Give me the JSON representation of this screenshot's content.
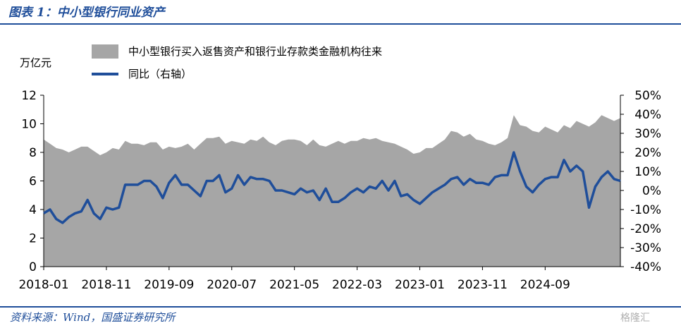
{
  "header": {
    "title": "图表 1：中小型银行同业资产"
  },
  "footer": {
    "source": "资料来源：Wind，国盛证券研究所",
    "watermark": "格隆汇"
  },
  "colors": {
    "area": "#a6a6a6",
    "line": "#1f4e9a",
    "accent": "#1f4e9a"
  },
  "chart_data": {
    "type": "area+line",
    "unit_left": "万亿元",
    "legend": [
      {
        "name": "中小型银行买入返售资产和银行业存款类金融机构往来",
        "type": "area",
        "axis": "left"
      },
      {
        "name": "同比（右轴）",
        "type": "line",
        "axis": "right"
      }
    ],
    "x_tick_labels": [
      "2018-01",
      "2018-11",
      "2019-09",
      "2020-07",
      "2021-05",
      "2022-03",
      "2023-01",
      "2023-11",
      "2024-09"
    ],
    "y_left": {
      "range": [
        0,
        12
      ],
      "ticks": [
        "0",
        "2",
        "4",
        "6",
        "8",
        "10",
        "12"
      ]
    },
    "y_right": {
      "range": [
        -40,
        50
      ],
      "ticks": [
        "-40%",
        "-30%",
        "-20%",
        "-10%",
        "0%",
        "10%",
        "20%",
        "30%",
        "40%",
        "50%"
      ]
    },
    "months_start": "2018-01",
    "series": [
      {
        "name": "中小型银行买入返售资产和银行业存款类金融机构往来",
        "axis": "left",
        "values": [
          8.9,
          8.6,
          8.3,
          8.2,
          8.0,
          8.2,
          8.4,
          8.4,
          8.1,
          7.8,
          8.0,
          8.3,
          8.2,
          8.8,
          8.6,
          8.6,
          8.5,
          8.7,
          8.7,
          8.2,
          8.4,
          8.3,
          8.4,
          8.6,
          8.2,
          8.6,
          9.0,
          9.0,
          9.1,
          8.6,
          8.8,
          8.7,
          8.6,
          8.9,
          8.8,
          9.1,
          8.7,
          8.5,
          8.8,
          8.9,
          8.9,
          8.8,
          8.5,
          8.9,
          8.5,
          8.4,
          8.6,
          8.8,
          8.6,
          8.8,
          8.8,
          9.0,
          8.9,
          9.0,
          8.8,
          8.7,
          8.6,
          8.4,
          8.2,
          7.9,
          8.0,
          8.3,
          8.3,
          8.6,
          8.9,
          9.5,
          9.4,
          9.1,
          9.3,
          8.9,
          8.8,
          8.6,
          8.5,
          8.7,
          9.0,
          10.6,
          9.9,
          9.8,
          9.5,
          9.4,
          9.8,
          9.6,
          9.4,
          9.9,
          9.7,
          10.2,
          10.0,
          9.8,
          10.1,
          10.6,
          10.4,
          10.2,
          10.4
        ]
      },
      {
        "name": "同比（右轴）",
        "axis": "right",
        "values": [
          -12,
          -10,
          -15,
          -17,
          -14,
          -12,
          -11,
          -5,
          -12,
          -15,
          -9,
          -10,
          -9,
          3,
          3,
          3,
          5,
          5,
          2,
          -4,
          4,
          8,
          3,
          3,
          0,
          -3,
          5,
          5,
          8,
          -1,
          1,
          8,
          3,
          7,
          6,
          6,
          5,
          0,
          0,
          -1,
          -2,
          1,
          -1,
          0,
          -5,
          1,
          -6,
          -6,
          -4,
          -1,
          1,
          -1,
          2,
          1,
          5,
          0,
          5,
          -3,
          -2,
          -5,
          -7,
          -4,
          -1,
          1,
          3,
          6,
          7,
          3,
          6,
          4,
          4,
          3,
          7,
          8,
          8,
          20,
          10,
          2,
          -1,
          3,
          6,
          7,
          7,
          16,
          10,
          13,
          10,
          -9,
          2,
          7,
          10,
          6,
          5
        ]
      }
    ]
  }
}
